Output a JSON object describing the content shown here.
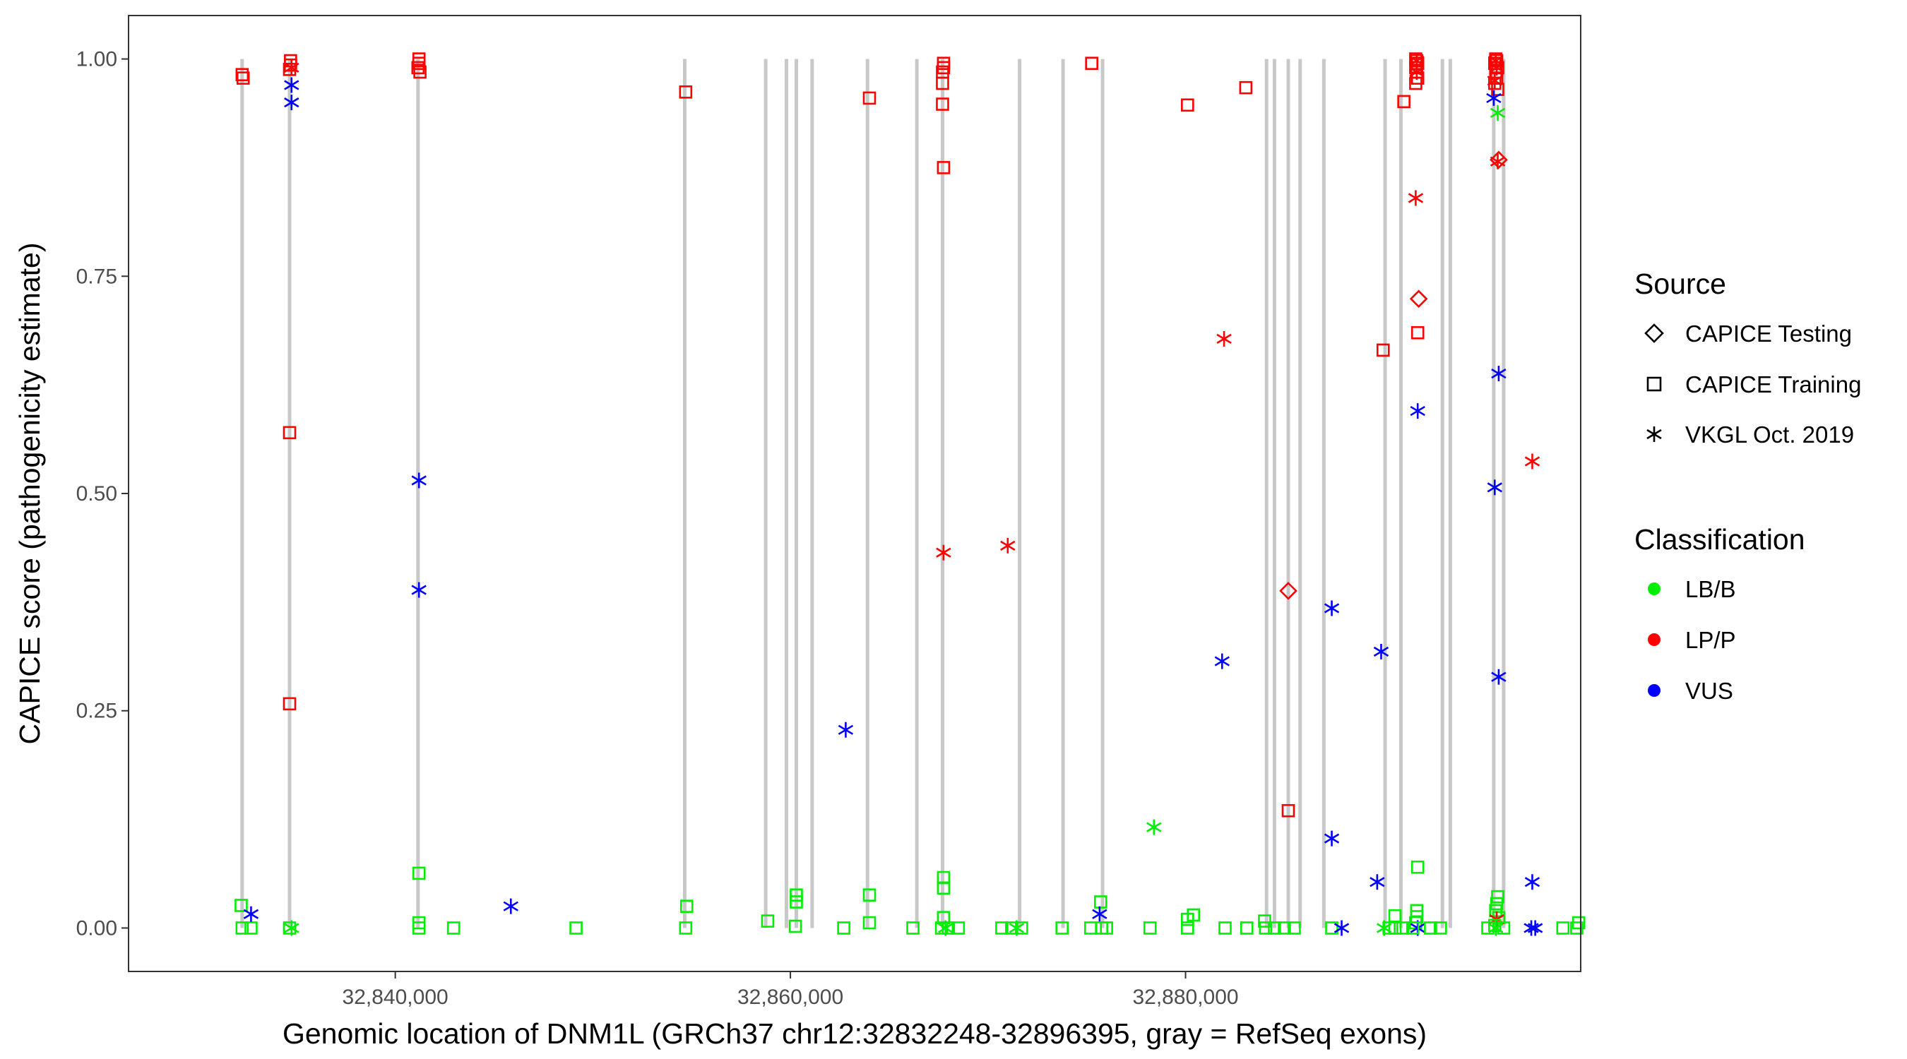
{
  "chart_data": {
    "type": "scatter",
    "title": "",
    "xlabel": "Genomic location of DNM1L (GRCh37 chr12:32832248-32896395, gray = RefSeq exons)",
    "ylabel": "CAPICE score (pathogenicity estimate)",
    "xlim": [
      32826500,
      32900000
    ],
    "ylim": [
      -0.05,
      1.05
    ],
    "x_ticks": [
      32840000,
      32860000,
      32880000
    ],
    "x_tick_labels": [
      "32,840,000",
      "32,860,000",
      "32,880,000"
    ],
    "y_ticks": [
      0.0,
      0.25,
      0.5,
      0.75,
      1.0
    ],
    "y_tick_labels": [
      "0.00",
      "0.25",
      "0.50",
      "0.75",
      "1.00"
    ],
    "exon_positions": [
      32832248,
      32834650,
      32841150,
      32854650,
      32858750,
      32859800,
      32860300,
      32861100,
      32863900,
      32866400,
      32867700,
      32871600,
      32873800,
      32875800,
      32884100,
      32884500,
      32885200,
      32885800,
      32887000,
      32890100,
      32890900,
      32893000,
      32893400,
      32895600,
      32896100
    ],
    "legend": {
      "source_title": "Source",
      "source_entries": [
        {
          "label": "CAPICE Testing",
          "shape": "diamond"
        },
        {
          "label": "CAPICE Training",
          "shape": "square"
        },
        {
          "label": "VKGL Oct. 2019",
          "shape": "star"
        }
      ],
      "class_title": "Classification",
      "class_entries": [
        {
          "label": "LB/B",
          "color": "#00ee00"
        },
        {
          "label": "LP/P",
          "color": "#ff0000"
        },
        {
          "label": "VUS",
          "color": "#0000ff"
        }
      ]
    },
    "colors": {
      "LB/B": "#00ee00",
      "LP/P": "#ff0000",
      "VUS": "#0000ff",
      "exon": "#c8c8c8"
    },
    "points": [
      {
        "x": 32832250,
        "y": 0.982,
        "shape": "square",
        "cls": "LP/P"
      },
      {
        "x": 32832300,
        "y": 0.978,
        "shape": "square",
        "cls": "LP/P"
      },
      {
        "x": 32834700,
        "y": 0.998,
        "shape": "square",
        "cls": "LP/P"
      },
      {
        "x": 32834700,
        "y": 0.993,
        "shape": "square",
        "cls": "LP/P"
      },
      {
        "x": 32834650,
        "y": 0.988,
        "shape": "square",
        "cls": "LP/P"
      },
      {
        "x": 32834750,
        "y": 0.99,
        "shape": "star",
        "cls": "LP/P"
      },
      {
        "x": 32834750,
        "y": 0.97,
        "shape": "star",
        "cls": "VUS"
      },
      {
        "x": 32834750,
        "y": 0.95,
        "shape": "star",
        "cls": "VUS"
      },
      {
        "x": 32834650,
        "y": 0.57,
        "shape": "square",
        "cls": "LP/P"
      },
      {
        "x": 32834650,
        "y": 0.258,
        "shape": "square",
        "cls": "LP/P"
      },
      {
        "x": 32832200,
        "y": 0.026,
        "shape": "square",
        "cls": "LB/B"
      },
      {
        "x": 32832250,
        "y": 0.0,
        "shape": "square",
        "cls": "LB/B"
      },
      {
        "x": 32832700,
        "y": 0.0,
        "shape": "square",
        "cls": "LB/B"
      },
      {
        "x": 32832700,
        "y": 0.016,
        "shape": "star",
        "cls": "VUS"
      },
      {
        "x": 32834650,
        "y": 0.0,
        "shape": "square",
        "cls": "LB/B"
      },
      {
        "x": 32834750,
        "y": 0.0,
        "shape": "star",
        "cls": "LB/B"
      },
      {
        "x": 32841200,
        "y": 1.0,
        "shape": "square",
        "cls": "LP/P"
      },
      {
        "x": 32841200,
        "y": 0.995,
        "shape": "square",
        "cls": "LP/P"
      },
      {
        "x": 32841150,
        "y": 0.99,
        "shape": "square",
        "cls": "LP/P"
      },
      {
        "x": 32841250,
        "y": 0.985,
        "shape": "square",
        "cls": "LP/P"
      },
      {
        "x": 32841200,
        "y": 0.515,
        "shape": "star",
        "cls": "VUS"
      },
      {
        "x": 32841200,
        "y": 0.389,
        "shape": "star",
        "cls": "VUS"
      },
      {
        "x": 32841200,
        "y": 0.063,
        "shape": "square",
        "cls": "LB/B"
      },
      {
        "x": 32841200,
        "y": 0.006,
        "shape": "square",
        "cls": "LB/B"
      },
      {
        "x": 32841200,
        "y": 0.0,
        "shape": "square",
        "cls": "LB/B"
      },
      {
        "x": 32842950,
        "y": 0.0,
        "shape": "square",
        "cls": "LB/B"
      },
      {
        "x": 32845850,
        "y": 0.025,
        "shape": "star",
        "cls": "VUS"
      },
      {
        "x": 32849150,
        "y": 0.0,
        "shape": "square",
        "cls": "LB/B"
      },
      {
        "x": 32854700,
        "y": 0.962,
        "shape": "square",
        "cls": "LP/P"
      },
      {
        "x": 32854750,
        "y": 0.025,
        "shape": "square",
        "cls": "LB/B"
      },
      {
        "x": 32854700,
        "y": 0.0,
        "shape": "square",
        "cls": "LB/B"
      },
      {
        "x": 32858850,
        "y": 0.008,
        "shape": "square",
        "cls": "LB/B"
      },
      {
        "x": 32860300,
        "y": 0.038,
        "shape": "square",
        "cls": "LB/B"
      },
      {
        "x": 32860300,
        "y": 0.03,
        "shape": "square",
        "cls": "LB/B"
      },
      {
        "x": 32860250,
        "y": 0.002,
        "shape": "square",
        "cls": "LB/B"
      },
      {
        "x": 32862800,
        "y": 0.228,
        "shape": "star",
        "cls": "VUS"
      },
      {
        "x": 32862700,
        "y": 0.0,
        "shape": "square",
        "cls": "LB/B"
      },
      {
        "x": 32864000,
        "y": 0.955,
        "shape": "square",
        "cls": "LP/P"
      },
      {
        "x": 32864000,
        "y": 0.038,
        "shape": "square",
        "cls": "LB/B"
      },
      {
        "x": 32864000,
        "y": 0.006,
        "shape": "square",
        "cls": "LB/B"
      },
      {
        "x": 32866200,
        "y": 0.0,
        "shape": "square",
        "cls": "LB/B"
      },
      {
        "x": 32867750,
        "y": 0.995,
        "shape": "square",
        "cls": "LP/P"
      },
      {
        "x": 32867750,
        "y": 0.99,
        "shape": "square",
        "cls": "LP/P"
      },
      {
        "x": 32867700,
        "y": 0.985,
        "shape": "square",
        "cls": "LP/P"
      },
      {
        "x": 32867700,
        "y": 0.972,
        "shape": "square",
        "cls": "LP/P"
      },
      {
        "x": 32867700,
        "y": 0.948,
        "shape": "square",
        "cls": "LP/P"
      },
      {
        "x": 32867750,
        "y": 0.875,
        "shape": "square",
        "cls": "LP/P"
      },
      {
        "x": 32867750,
        "y": 0.432,
        "shape": "star",
        "cls": "LP/P"
      },
      {
        "x": 32867750,
        "y": 0.058,
        "shape": "square",
        "cls": "LB/B"
      },
      {
        "x": 32867750,
        "y": 0.046,
        "shape": "square",
        "cls": "LB/B"
      },
      {
        "x": 32867750,
        "y": 0.012,
        "shape": "square",
        "cls": "LB/B"
      },
      {
        "x": 32867650,
        "y": 0.0,
        "shape": "square",
        "cls": "LB/B"
      },
      {
        "x": 32868000,
        "y": 0.0,
        "shape": "square",
        "cls": "LB/B"
      },
      {
        "x": 32868500,
        "y": 0.0,
        "shape": "square",
        "cls": "LB/B"
      },
      {
        "x": 32867850,
        "y": 0.0,
        "shape": "star",
        "cls": "LB/B"
      },
      {
        "x": 32871000,
        "y": 0.44,
        "shape": "star",
        "cls": "LP/P"
      },
      {
        "x": 32870700,
        "y": 0.0,
        "shape": "square",
        "cls": "LB/B"
      },
      {
        "x": 32871200,
        "y": 0.0,
        "shape": "square",
        "cls": "LB/B"
      },
      {
        "x": 32871700,
        "y": 0.0,
        "shape": "square",
        "cls": "LB/B"
      },
      {
        "x": 32871450,
        "y": 0.0,
        "shape": "star",
        "cls": "LB/B"
      },
      {
        "x": 32873750,
        "y": 0.0,
        "shape": "square",
        "cls": "LB/B"
      },
      {
        "x": 32875250,
        "y": 0.995,
        "shape": "square",
        "cls": "LP/P"
      },
      {
        "x": 32875700,
        "y": 0.03,
        "shape": "square",
        "cls": "LB/B"
      },
      {
        "x": 32875650,
        "y": 0.016,
        "shape": "star",
        "cls": "VUS"
      },
      {
        "x": 32875200,
        "y": 0.0,
        "shape": "square",
        "cls": "LB/B"
      },
      {
        "x": 32875750,
        "y": 0.0,
        "shape": "square",
        "cls": "LB/B"
      },
      {
        "x": 32876000,
        "y": 0.0,
        "shape": "square",
        "cls": "LB/B"
      },
      {
        "x": 32878400,
        "y": 0.116,
        "shape": "star",
        "cls": "LB/B"
      },
      {
        "x": 32878200,
        "y": 0.0,
        "shape": "square",
        "cls": "LB/B"
      },
      {
        "x": 32880100,
        "y": 0.947,
        "shape": "square",
        "cls": "LP/P"
      },
      {
        "x": 32880400,
        "y": 0.015,
        "shape": "square",
        "cls": "LB/B"
      },
      {
        "x": 32880100,
        "y": 0.01,
        "shape": "square",
        "cls": "LB/B"
      },
      {
        "x": 32880100,
        "y": 0.0,
        "shape": "square",
        "cls": "LB/B"
      },
      {
        "x": 32881950,
        "y": 0.678,
        "shape": "star",
        "cls": "LP/P"
      },
      {
        "x": 32881850,
        "y": 0.307,
        "shape": "star",
        "cls": "VUS"
      },
      {
        "x": 32882000,
        "y": 0.0,
        "shape": "square",
        "cls": "LB/B"
      },
      {
        "x": 32883050,
        "y": 0.967,
        "shape": "square",
        "cls": "LP/P"
      },
      {
        "x": 32883100,
        "y": 0.0,
        "shape": "square",
        "cls": "LB/B"
      },
      {
        "x": 32884000,
        "y": 0.008,
        "shape": "square",
        "cls": "LB/B"
      },
      {
        "x": 32884050,
        "y": 0.0,
        "shape": "square",
        "cls": "LB/B"
      },
      {
        "x": 32884500,
        "y": 0.0,
        "shape": "square",
        "cls": "LB/B"
      },
      {
        "x": 32885000,
        "y": 0.0,
        "shape": "square",
        "cls": "LB/B"
      },
      {
        "x": 32885200,
        "y": 0.388,
        "shape": "diamond",
        "cls": "LP/P"
      },
      {
        "x": 32885200,
        "y": 0.135,
        "shape": "square",
        "cls": "LP/P"
      },
      {
        "x": 32885500,
        "y": 0.0,
        "shape": "square",
        "cls": "LB/B"
      },
      {
        "x": 32887400,
        "y": 0.368,
        "shape": "star",
        "cls": "VUS"
      },
      {
        "x": 32887400,
        "y": 0.103,
        "shape": "star",
        "cls": "VUS"
      },
      {
        "x": 32887400,
        "y": 0.0,
        "shape": "square",
        "cls": "LB/B"
      },
      {
        "x": 32887900,
        "y": 0.0,
        "shape": "star",
        "cls": "VUS"
      },
      {
        "x": 32890000,
        "y": 0.665,
        "shape": "square",
        "cls": "LP/P"
      },
      {
        "x": 32889900,
        "y": 0.318,
        "shape": "star",
        "cls": "VUS"
      },
      {
        "x": 32889700,
        "y": 0.053,
        "shape": "star",
        "cls": "VUS"
      },
      {
        "x": 32890050,
        "y": 0.0,
        "shape": "star",
        "cls": "LB/B"
      },
      {
        "x": 32890300,
        "y": 0.0,
        "shape": "square",
        "cls": "LB/B"
      },
      {
        "x": 32890600,
        "y": 0.014,
        "shape": "square",
        "cls": "LB/B"
      },
      {
        "x": 32890600,
        "y": 0.0,
        "shape": "square",
        "cls": "LB/B"
      },
      {
        "x": 32891050,
        "y": 0.951,
        "shape": "square",
        "cls": "LP/P"
      },
      {
        "x": 32891000,
        "y": 0.0,
        "shape": "square",
        "cls": "LB/B"
      },
      {
        "x": 32891650,
        "y": 1.0,
        "shape": "square",
        "cls": "LP/P"
      },
      {
        "x": 32891700,
        "y": 0.998,
        "shape": "square",
        "cls": "LP/P"
      },
      {
        "x": 32891750,
        "y": 0.995,
        "shape": "square",
        "cls": "LP/P"
      },
      {
        "x": 32891650,
        "y": 0.99,
        "shape": "square",
        "cls": "LP/P"
      },
      {
        "x": 32891700,
        "y": 0.985,
        "shape": "square",
        "cls": "LP/P"
      },
      {
        "x": 32891750,
        "y": 0.978,
        "shape": "square",
        "cls": "LP/P"
      },
      {
        "x": 32891650,
        "y": 0.972,
        "shape": "square",
        "cls": "LP/P"
      },
      {
        "x": 32891700,
        "y": 0.998,
        "shape": "star",
        "cls": "LP/P"
      },
      {
        "x": 32891700,
        "y": 0.985,
        "shape": "star",
        "cls": "LP/P"
      },
      {
        "x": 32891650,
        "y": 0.84,
        "shape": "star",
        "cls": "LP/P"
      },
      {
        "x": 32891800,
        "y": 0.724,
        "shape": "diamond",
        "cls": "LP/P"
      },
      {
        "x": 32891750,
        "y": 0.685,
        "shape": "square",
        "cls": "LP/P"
      },
      {
        "x": 32891750,
        "y": 0.595,
        "shape": "star",
        "cls": "VUS"
      },
      {
        "x": 32891750,
        "y": 0.07,
        "shape": "square",
        "cls": "LB/B"
      },
      {
        "x": 32891700,
        "y": 0.02,
        "shape": "square",
        "cls": "LB/B"
      },
      {
        "x": 32891700,
        "y": 0.013,
        "shape": "square",
        "cls": "LB/B"
      },
      {
        "x": 32891650,
        "y": 0.006,
        "shape": "square",
        "cls": "LB/B"
      },
      {
        "x": 32891750,
        "y": 0.0,
        "shape": "star",
        "cls": "VUS"
      },
      {
        "x": 32891500,
        "y": 0.0,
        "shape": "square",
        "cls": "LB/B"
      },
      {
        "x": 32892400,
        "y": 0.0,
        "shape": "square",
        "cls": "LB/B"
      },
      {
        "x": 32892900,
        "y": 0.0,
        "shape": "square",
        "cls": "LB/B"
      },
      {
        "x": 32895700,
        "y": 1.0,
        "shape": "square",
        "cls": "LP/P"
      },
      {
        "x": 32895750,
        "y": 0.998,
        "shape": "square",
        "cls": "LP/P"
      },
      {
        "x": 32895650,
        "y": 0.995,
        "shape": "square",
        "cls": "LP/P"
      },
      {
        "x": 32895800,
        "y": 0.99,
        "shape": "square",
        "cls": "LP/P"
      },
      {
        "x": 32895700,
        "y": 0.985,
        "shape": "square",
        "cls": "LP/P"
      },
      {
        "x": 32895750,
        "y": 0.978,
        "shape": "square",
        "cls": "LP/P"
      },
      {
        "x": 32895650,
        "y": 0.972,
        "shape": "square",
        "cls": "LP/P"
      },
      {
        "x": 32895800,
        "y": 0.965,
        "shape": "square",
        "cls": "LP/P"
      },
      {
        "x": 32895700,
        "y": 0.998,
        "shape": "star",
        "cls": "LP/P"
      },
      {
        "x": 32895750,
        "y": 0.99,
        "shape": "star",
        "cls": "LP/P"
      },
      {
        "x": 32895650,
        "y": 0.975,
        "shape": "star",
        "cls": "LP/P"
      },
      {
        "x": 32895600,
        "y": 0.955,
        "shape": "star",
        "cls": "VUS"
      },
      {
        "x": 32895800,
        "y": 0.938,
        "shape": "star",
        "cls": "LB/B"
      },
      {
        "x": 32895850,
        "y": 0.884,
        "shape": "diamond",
        "cls": "LP/P"
      },
      {
        "x": 32895800,
        "y": 0.882,
        "shape": "star",
        "cls": "LP/P"
      },
      {
        "x": 32895850,
        "y": 0.638,
        "shape": "star",
        "cls": "VUS"
      },
      {
        "x": 32897550,
        "y": 0.537,
        "shape": "star",
        "cls": "LP/P"
      },
      {
        "x": 32895650,
        "y": 0.507,
        "shape": "star",
        "cls": "VUS"
      },
      {
        "x": 32895850,
        "y": 0.289,
        "shape": "star",
        "cls": "VUS"
      },
      {
        "x": 32897550,
        "y": 0.053,
        "shape": "star",
        "cls": "VUS"
      },
      {
        "x": 32895800,
        "y": 0.036,
        "shape": "square",
        "cls": "LB/B"
      },
      {
        "x": 32895750,
        "y": 0.028,
        "shape": "square",
        "cls": "LB/B"
      },
      {
        "x": 32895700,
        "y": 0.02,
        "shape": "square",
        "cls": "LB/B"
      },
      {
        "x": 32895850,
        "y": 0.012,
        "shape": "square",
        "cls": "LB/B"
      },
      {
        "x": 32895750,
        "y": 0.01,
        "shape": "star",
        "cls": "LP/P"
      },
      {
        "x": 32895650,
        "y": 0.003,
        "shape": "square",
        "cls": "LB/B"
      },
      {
        "x": 32895300,
        "y": 0.0,
        "shape": "square",
        "cls": "LB/B"
      },
      {
        "x": 32895700,
        "y": 0.0,
        "shape": "star",
        "cls": "LB/B"
      },
      {
        "x": 32896100,
        "y": 0.0,
        "shape": "square",
        "cls": "LB/B"
      },
      {
        "x": 32897500,
        "y": 0.0,
        "shape": "star",
        "cls": "VUS"
      },
      {
        "x": 32897700,
        "y": 0.0,
        "shape": "star",
        "cls": "VUS"
      },
      {
        "x": 32899100,
        "y": 0.0,
        "shape": "square",
        "cls": "LB/B"
      },
      {
        "x": 32899800,
        "y": 0.0,
        "shape": "square",
        "cls": "LB/B"
      },
      {
        "x": 32899900,
        "y": 0.006,
        "shape": "square",
        "cls": "LB/B"
      }
    ]
  }
}
